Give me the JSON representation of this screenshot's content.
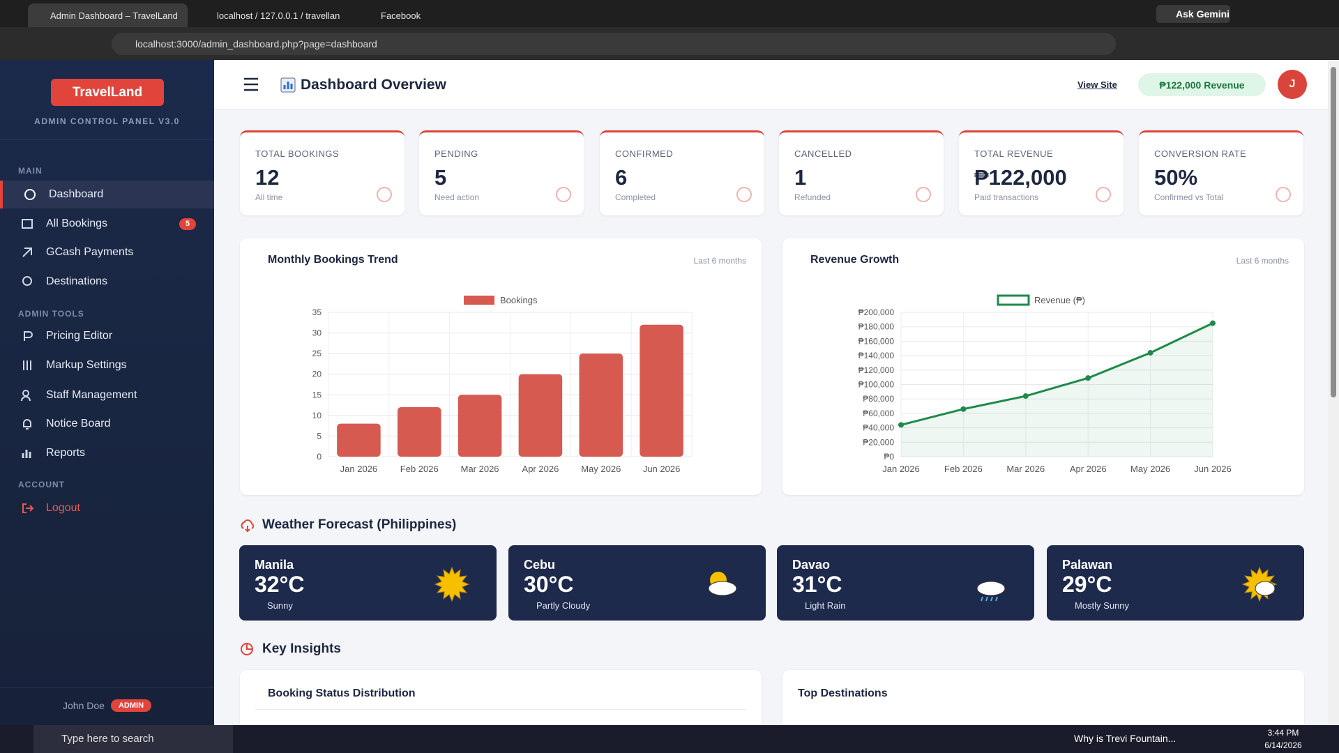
{
  "browser": {
    "tabs": [
      "Admin Dashboard – TravelLand",
      "localhost / 127.0.0.1 / travellan",
      "Facebook"
    ],
    "ask": "Ask Gemini",
    "url": "localhost:3000/admin_dashboard.php?page=dashboard"
  },
  "sidebar": {
    "brand": "TravelLand",
    "subtitle": "ADMIN CONTROL PANEL V3.0",
    "sections": [
      {
        "title": "MAIN",
        "items": [
          {
            "label": "Dashboard"
          },
          {
            "label": "All Bookings",
            "badge": 5
          },
          {
            "label": "GCash Payments"
          },
          {
            "label": "Destinations"
          }
        ]
      },
      {
        "title": "ADMIN TOOLS",
        "items": [
          {
            "label": "Pricing Editor"
          },
          {
            "label": "Markup Settings"
          },
          {
            "label": "Staff Management"
          },
          {
            "label": "Notice Board"
          },
          {
            "label": "Reports"
          }
        ]
      },
      {
        "title": "ACCOUNT",
        "items": [
          {
            "label": "Logout"
          }
        ]
      }
    ],
    "user": "John Doe",
    "role": "ADMIN"
  },
  "header": {
    "title": "Dashboard Overview",
    "view_site": "View Site",
    "revenue": "₱122,000 Revenue",
    "avatar": "J"
  },
  "stats": [
    {
      "label": "TOTAL BOOKINGS",
      "value": 12,
      "note": "All time"
    },
    {
      "label": "PENDING",
      "value": 5,
      "note": "Need action"
    },
    {
      "label": "CONFIRMED",
      "value": 6,
      "note": "Completed"
    },
    {
      "label": "CANCELLED",
      "value": 1,
      "note": "Refunded"
    },
    {
      "label": "TOTAL REVENUE",
      "value": "₱122,000",
      "note": "Paid transactions"
    },
    {
      "label": "CONVERSION RATE",
      "value": "50%",
      "note": "Confirmed vs Total"
    }
  ],
  "chart_data": [
    {
      "type": "bar",
      "title": "Monthly Bookings Trend",
      "subtitle": "Last 6 months",
      "categories": [
        "Jan 2026",
        "Feb 2026",
        "Mar 2026",
        "Apr 2026",
        "May 2026",
        "Jun 2026"
      ],
      "series": [
        {
          "name": "Bookings",
          "color": "#d65a50",
          "values": [
            8,
            12,
            15,
            20,
            25,
            32
          ]
        }
      ],
      "ylim": [
        0,
        35
      ],
      "yticks": [
        0,
        5,
        10,
        15,
        20,
        25,
        30,
        35
      ],
      "grid": true
    },
    {
      "type": "line",
      "title": "Revenue Growth",
      "subtitle": "Last 6 months",
      "categories": [
        "Jan 2026",
        "Feb 2026",
        "Mar 2026",
        "Apr 2026",
        "May 2026",
        "Jun 2026"
      ],
      "series": [
        {
          "name": "Revenue (₱)",
          "color": "#1e8a4a",
          "values": [
            44000,
            66000,
            84000,
            109000,
            144000,
            185000
          ]
        }
      ],
      "ylim": [
        0,
        200000
      ],
      "yticks": [
        {
          "value": 0,
          "label": "₱0"
        },
        {
          "value": 20000,
          "label": "₱20,000"
        },
        {
          "value": 40000,
          "label": "₱40,000"
        },
        {
          "value": 60000,
          "label": "₱60,000"
        },
        {
          "value": 80000,
          "label": "₱80,000"
        },
        {
          "value": 100000,
          "label": "₱100,000"
        },
        {
          "value": 120000,
          "label": "₱120,000"
        },
        {
          "value": 140000,
          "label": "₱140,000"
        },
        {
          "value": 160000,
          "label": "₱160,000"
        },
        {
          "value": 180000,
          "label": "₱180,000"
        },
        {
          "value": 200000,
          "label": "₱200,000"
        }
      ],
      "grid": true
    }
  ],
  "weather": {
    "title": "Weather Forecast (Philippines)",
    "cards": [
      {
        "city": "Manila",
        "temp": "32°C",
        "condition": "Sunny"
      },
      {
        "city": "Cebu",
        "temp": "30°C",
        "condition": "Partly Cloudy"
      },
      {
        "city": "Davao",
        "temp": "31°C",
        "condition": "Light Rain"
      },
      {
        "city": "Palawan",
        "temp": "29°C",
        "condition": "Mostly Sunny"
      }
    ]
  },
  "insights": {
    "title": "Key Insights",
    "panels": [
      "Booking Status Distribution",
      "Top Destinations"
    ]
  },
  "taskbar": {
    "search": "Type here to search",
    "news": "Why is Trevi Fountain...",
    "time": "3:44 PM",
    "date": "6/14/2026"
  }
}
